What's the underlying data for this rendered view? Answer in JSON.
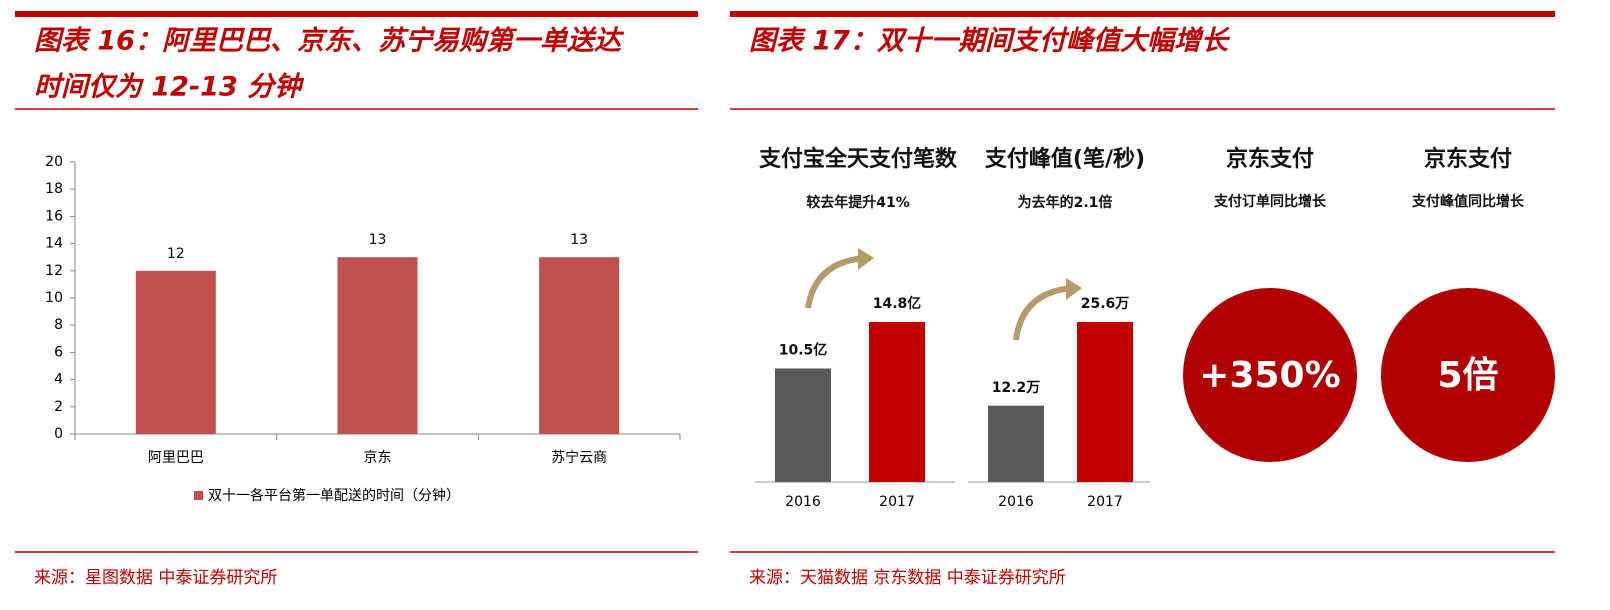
{
  "figures": [
    {
      "caption": [
        "图表 16：阿里巴巴、京东、苏宁易购第一单送达",
        "时间仅为 12-13 分钟"
      ],
      "source": "来源：星图数据 中泰证券研究所"
    },
    {
      "caption": [
        "图表 17：双十一期间支付峰值大幅增长"
      ],
      "source": "来源：天猫数据 京东数据 中泰证券研究所"
    }
  ],
  "chart_data": [
    {
      "type": "bar",
      "categories": [
        "阿里巴巴",
        "京东",
        "苏宁云商"
      ],
      "series": [
        {
          "name": "双十一各平台第一单配送的时间（分钟）",
          "color": "#c0504d",
          "values": [
            12,
            13,
            13
          ]
        }
      ],
      "ylim": [
        0,
        20
      ],
      "yticks": [
        0,
        2,
        4,
        6,
        8,
        10,
        12,
        14,
        16,
        18,
        20
      ],
      "legend": "bottom"
    },
    {
      "type": "minibar",
      "title": "支付宝全天支付笔数",
      "subtitle": "较去年提升41%",
      "categories": [
        "2016",
        "2017"
      ],
      "values": [
        10.5,
        14.8
      ],
      "value_labels": [
        "10.5亿",
        "14.8亿"
      ],
      "colors": [
        "#595959",
        "#c00000"
      ]
    },
    {
      "type": "minibar",
      "title": "支付峰值(笔/秒)",
      "subtitle": "为去年的2.1倍",
      "categories": [
        "2016",
        "2017"
      ],
      "values": [
        12.2,
        25.6
      ],
      "value_labels": [
        "12.2万",
        "25.6万"
      ],
      "colors": [
        "#595959",
        "#c00000"
      ]
    }
  ],
  "stats": [
    {
      "title": "京东支付",
      "subtitle": "支付订单同比增长",
      "value": "+350%"
    },
    {
      "title": "京东支付",
      "subtitle": "支付峰值同比增长",
      "value": "5倍"
    }
  ]
}
